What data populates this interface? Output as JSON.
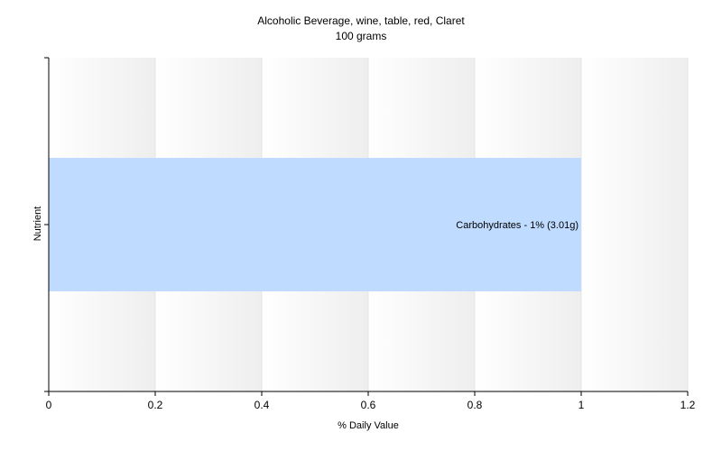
{
  "chart_data": {
    "type": "bar",
    "orientation": "horizontal",
    "title": "Alcoholic Beverage, wine, table, red, Claret",
    "subtitle": "100 grams",
    "xlabel": "% Daily Value",
    "ylabel": "Nutrient",
    "xlim": [
      0,
      1.2
    ],
    "xticks": [
      "0",
      "0.2",
      "0.4",
      "0.6",
      "0.8",
      "1",
      "1.2"
    ],
    "grid": true,
    "categories": [
      "Carbohydrates"
    ],
    "values": [
      1.0
    ],
    "data_labels": [
      "Carbohydrates - 1% (3.01g)"
    ],
    "colors": {
      "bar": "#bfdbff",
      "grid": "#e4e4e4",
      "axis": "#000000"
    }
  }
}
